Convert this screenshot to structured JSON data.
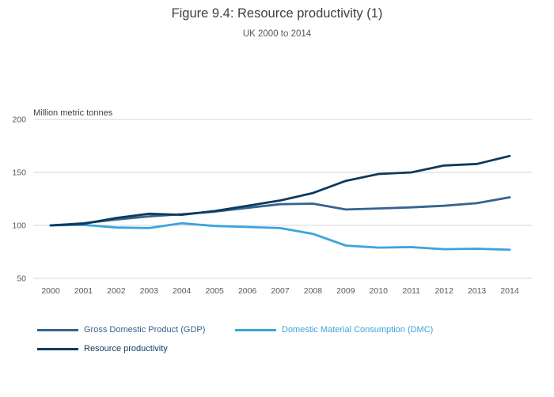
{
  "chart": {
    "title": "Figure 9.4: Resource productivity (1)",
    "subtitle": "UK 2000 to 2014",
    "ylabel": "Million metric tonnes"
  },
  "chart_data": {
    "type": "line",
    "title": "Figure 9.4: Resource productivity (1)",
    "subtitle": "UK 2000 to 2014",
    "ylabel": "Million metric tonnes",
    "x": [
      2000,
      2001,
      2002,
      2003,
      2004,
      2005,
      2006,
      2007,
      2008,
      2009,
      2010,
      2011,
      2012,
      2013,
      2014
    ],
    "series": [
      {
        "name": "Gross Domestic Product (GDP)",
        "color": "#35648f",
        "values": [
          100,
          102,
          105.5,
          108.5,
          110.5,
          113,
          116.5,
          120,
          120.5,
          115,
          116,
          117,
          118.5,
          121,
          126.5
        ]
      },
      {
        "name": "Domestic Material Consumption (DMC)",
        "color": "#3ba4dc",
        "values": [
          100,
          100.5,
          98,
          97.5,
          102,
          99.5,
          98.5,
          97.5,
          92,
          81,
          79,
          79.5,
          77.5,
          78,
          77
        ]
      },
      {
        "name": "Resource productivity",
        "color": "#0f3a5d",
        "values": [
          100,
          101.5,
          107,
          111,
          110,
          113.5,
          118.5,
          123.5,
          130.5,
          142,
          148.5,
          150,
          156.5,
          158,
          165.5
        ]
      }
    ],
    "yticks": [
      50,
      100,
      150,
      200
    ],
    "ylim": [
      50,
      200
    ],
    "grid": "horizontal",
    "legend_position": "bottom",
    "colors": {
      "gridline": "#d4d4d4",
      "tick_text": "#595959",
      "axis_title_text": "#404040"
    }
  }
}
